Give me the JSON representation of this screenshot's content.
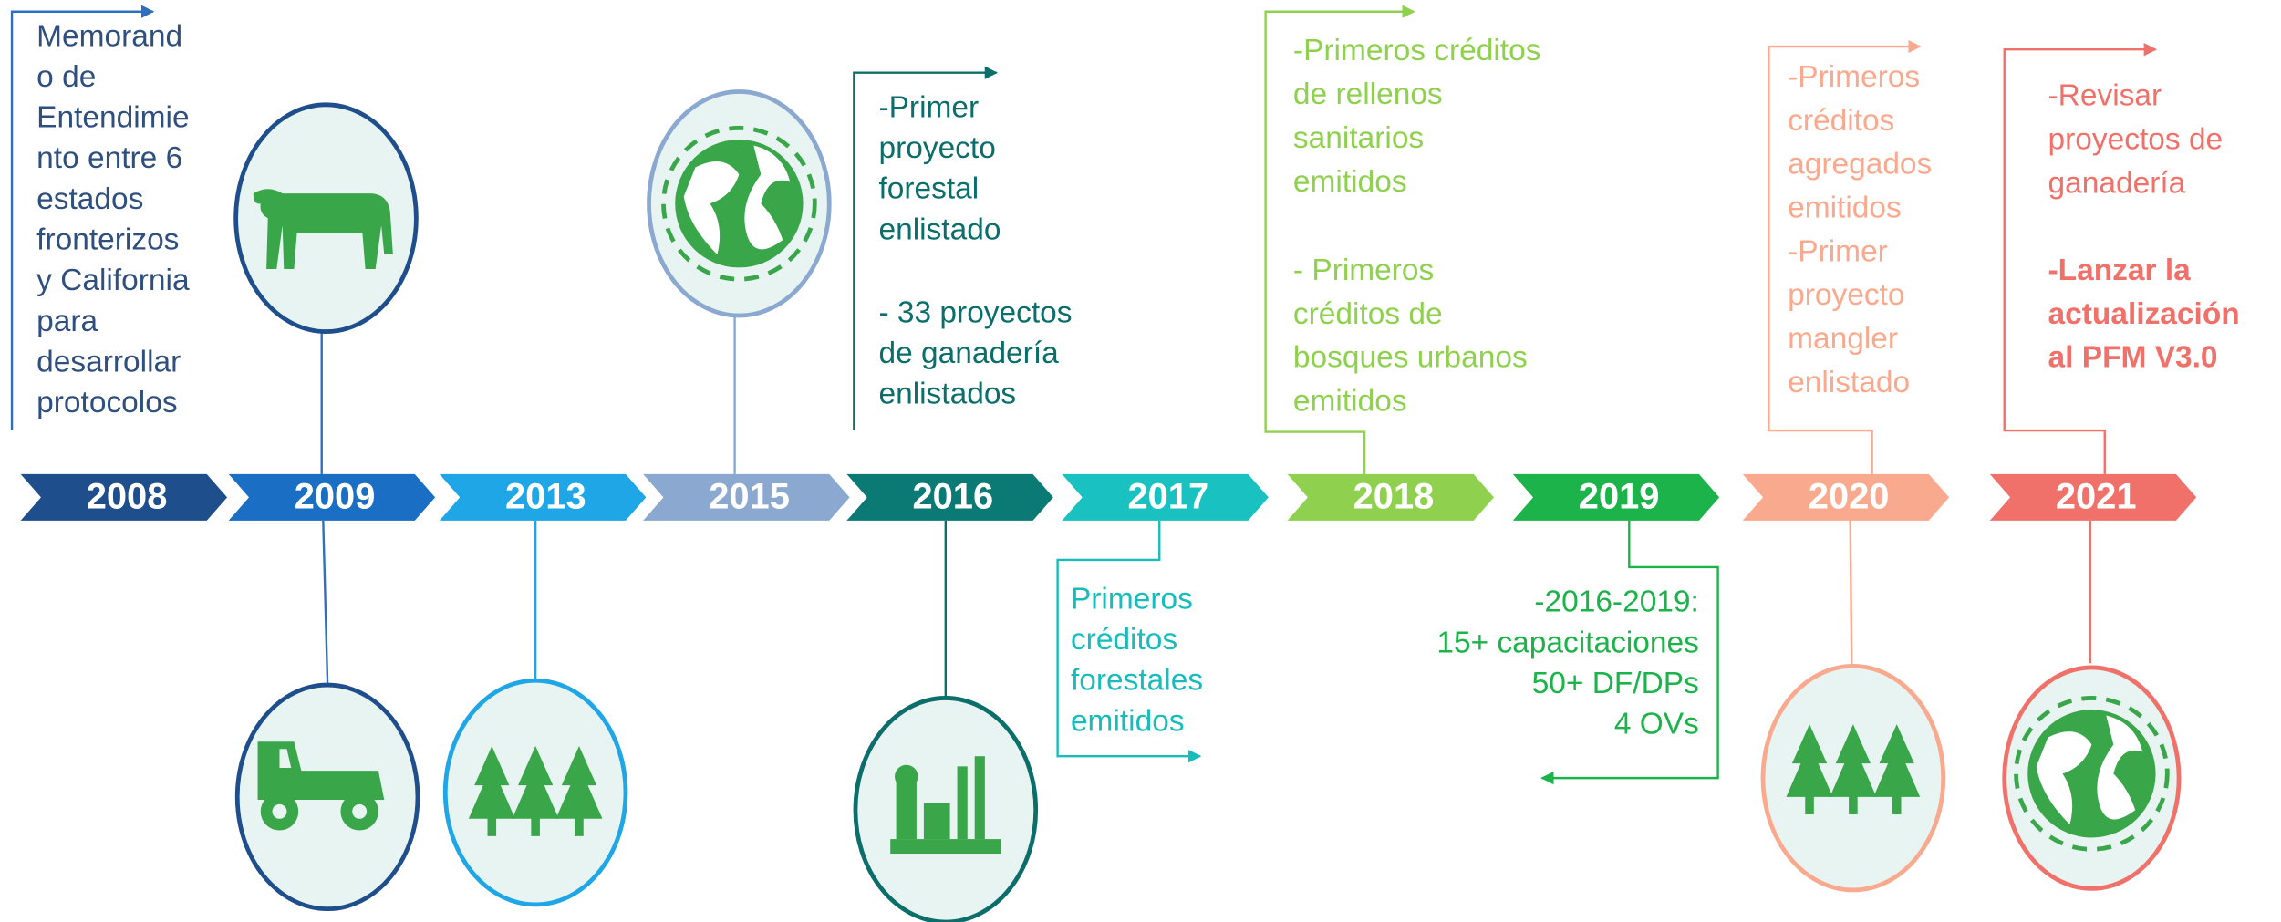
{
  "entries": [
    {
      "year": "2008",
      "text": [
        [
          "Memorand",
          "o de",
          "Entendimie",
          "nto entre 6",
          "estados",
          "fronterizos",
          "y California",
          "para",
          "desarrollar",
          "protocolos"
        ]
      ]
    },
    {
      "year": "2009"
    },
    {
      "year": "2013"
    },
    {
      "year": "2015"
    },
    {
      "year": "2016",
      "text": [
        [
          "-Primer",
          "proyecto",
          "forestal",
          "enlistado"
        ],
        [
          "- 33 proyectos",
          "de ganadería",
          "enlistados"
        ]
      ]
    },
    {
      "year": "2017",
      "text": [
        [
          "Primeros",
          "créditos",
          "forestales",
          "emitidos"
        ]
      ]
    },
    {
      "year": "2018",
      "text": [
        [
          "-Primeros créditos",
          "de rellenos",
          "sanitarios",
          "emitidos"
        ],
        [
          "- Primeros",
          "créditos de",
          "bosques urbanos",
          "emitidos"
        ]
      ]
    },
    {
      "year": "2019",
      "text": [
        [
          "-2016-2019:",
          "15+ capacitaciones",
          "50+ DF/DPs",
          "4 OVs"
        ]
      ]
    },
    {
      "year": "2020",
      "text": [
        [
          "-Primeros",
          "créditos",
          "agregados",
          "emitidos"
        ],
        [
          "-Primer",
          "proyecto",
          "mangler",
          "enlistado"
        ]
      ]
    },
    {
      "year": "2021",
      "text": [
        [
          "-Revisar",
          "proyectos de",
          "ganadería"
        ],
        [
          "-Lanzar la",
          "actualización",
          "al PFM V3.0"
        ]
      ]
    }
  ]
}
